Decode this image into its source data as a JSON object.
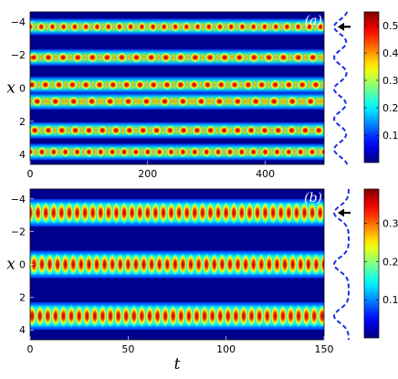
{
  "chart_data": [
    {
      "type": "heatmap",
      "panel_label": "(a)",
      "xlabel": "",
      "ylabel": "x",
      "xlim": [
        0,
        500
      ],
      "ylim": [
        -4.6,
        4.6
      ],
      "y_inverted": true,
      "x_ticks": [
        "0",
        "200",
        "400"
      ],
      "y_ticks": [
        "-4",
        "-2",
        "0",
        "2",
        "4"
      ],
      "colormap": "jet",
      "colorbar_ticks": [
        "0.1",
        "0.2",
        "0.3",
        "0.4",
        "0.5"
      ],
      "colorbar_range": [
        0,
        0.55
      ],
      "bands": [
        {
          "x": -3.7,
          "amplitude": 0.52,
          "period": 19,
          "phase": 0
        },
        {
          "x": -1.85,
          "amplitude": 0.45,
          "period": 25,
          "phase": 6
        },
        {
          "x": -0.2,
          "amplitude": 0.5,
          "period": 23,
          "phase": 3
        },
        {
          "x": 0.8,
          "amplitude": 0.44,
          "period": 31,
          "phase": 12
        },
        {
          "x": 2.55,
          "amplitude": 0.34,
          "period": 23,
          "phase": 8
        },
        {
          "x": 3.85,
          "amplitude": 0.5,
          "period": 20,
          "phase": 0
        }
      ],
      "profile_dips_x": [
        -3.7,
        -1.85,
        0.05,
        1.85,
        3.7
      ],
      "arrow_at_x": -3.7
    },
    {
      "type": "heatmap",
      "panel_label": "(b)",
      "xlabel": "t",
      "ylabel": "x",
      "xlim": [
        0,
        150
      ],
      "ylim": [
        -4.6,
        4.6
      ],
      "y_inverted": true,
      "x_ticks": [
        "0",
        "50",
        "100",
        "150"
      ],
      "y_ticks": [
        "-4",
        "-2",
        "0",
        "2",
        "4"
      ],
      "colormap": "jet",
      "colorbar_ticks": [
        "0.1",
        "0.2",
        "0.3"
      ],
      "colorbar_range": [
        0,
        0.39
      ],
      "bands": [
        {
          "x": -3.15,
          "amplitude": 0.38,
          "period": 4,
          "phase": 0
        },
        {
          "x": 0.0,
          "amplitude": 0.38,
          "period": 4,
          "phase": 2
        },
        {
          "x": 3.15,
          "amplitude": 0.38,
          "period": 4,
          "phase": 1
        }
      ],
      "profile_dips_x": [
        -3.15,
        0.0,
        3.15
      ],
      "arrow_at_x": -3.15
    }
  ]
}
